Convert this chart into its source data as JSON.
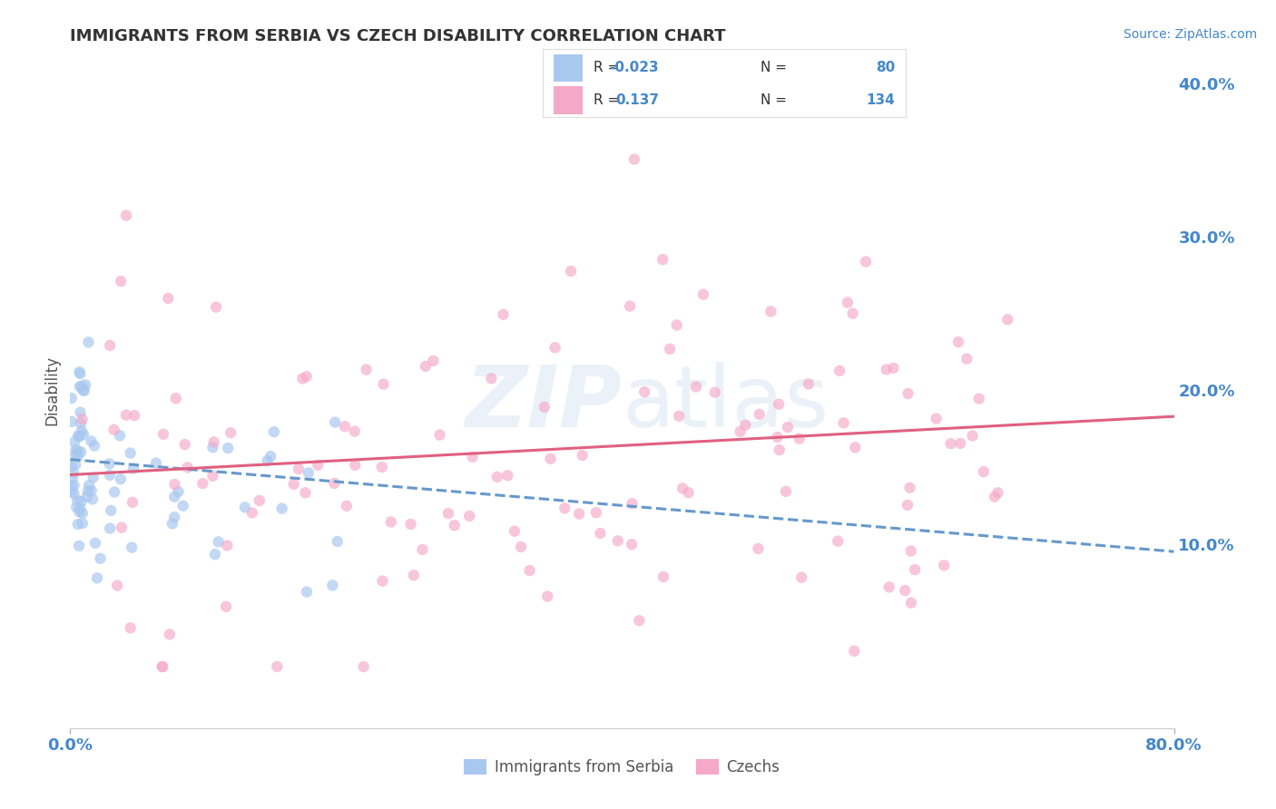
{
  "title": "IMMIGRANTS FROM SERBIA VS CZECH DISABILITY CORRELATION CHART",
  "source_text": "Source: ZipAtlas.com",
  "ylabel": "Disability",
  "xlim": [
    0.0,
    0.8
  ],
  "ylim": [
    -0.02,
    0.42
  ],
  "y_ticks": [
    0.0,
    0.1,
    0.2,
    0.3,
    0.4
  ],
  "y_tick_labels": [
    "",
    "10.0%",
    "20.0%",
    "30.0%",
    "40.0%"
  ],
  "background_color": "#ffffff",
  "grid_color": "#d0d0d0",
  "series1_color": "#a8c8f0",
  "series2_color": "#f5a8c8",
  "line1_color": "#6699cc",
  "line2_color": "#e06080",
  "scatter1_alpha": 0.7,
  "scatter2_alpha": 0.65,
  "marker_size": 80,
  "R1": -0.023,
  "N1": 80,
  "R2": 0.137,
  "N2": 134,
  "legend_label1": "Immigrants from Serbia",
  "legend_label2": "Czechs",
  "watermark_color": "#c8d8f0",
  "watermark_alpha": 0.35,
  "tick_color": "#4488cc",
  "axis_label_color": "#555555",
  "title_color": "#333333",
  "title_fontsize": 13,
  "legend_r1": "-0.023",
  "legend_r2": "0.137",
  "legend_n1": "80",
  "legend_n2": "134"
}
